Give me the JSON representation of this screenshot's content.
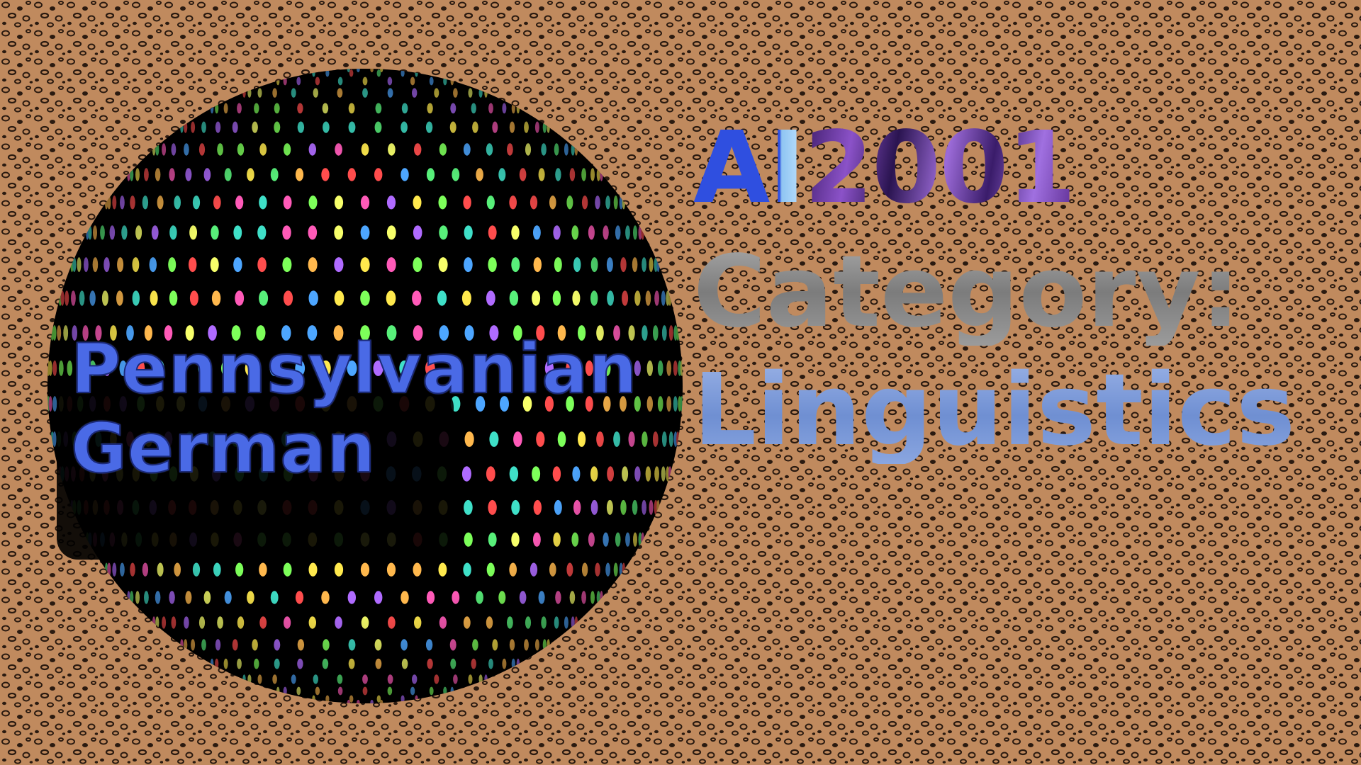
{
  "topic": {
    "line1": "Pennsylvanian",
    "line2": "German"
  },
  "brand": {
    "prefix": "AI",
    "year": "2001"
  },
  "category": {
    "label": "Category:",
    "value": "Linguistics"
  },
  "colors": {
    "background_base": "#c08a5e",
    "background_spots": "#2a1a10",
    "sphere": "#000000",
    "topic_text": "#4a6ae6",
    "brand_ai": "#2f4fe0",
    "brand_year": "#7b3fb0",
    "category_label": "#8a8a8a",
    "category_value": "#7f9bd8"
  },
  "decor": {
    "background": "leopard-print-pattern",
    "sphere": "disco-ball-dotted-sphere"
  }
}
